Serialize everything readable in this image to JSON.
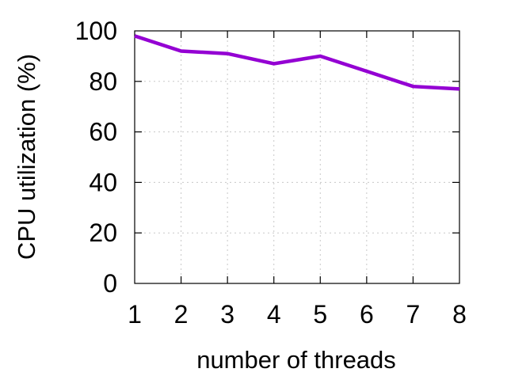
{
  "chart_data": {
    "type": "line",
    "title": "",
    "xlabel": "number of threads",
    "ylabel": "CPU utilization (%)",
    "xlim": [
      1,
      8
    ],
    "ylim": [
      0,
      100
    ],
    "xticks": [
      "1",
      "2",
      "3",
      "4",
      "5",
      "6",
      "7",
      "8"
    ],
    "yticks": [
      "0",
      "20",
      "40",
      "60",
      "80",
      "100"
    ],
    "grid": true,
    "legend": "none",
    "series": [
      {
        "color": "#9400d3",
        "x": [
          1,
          2,
          3,
          4,
          5,
          6,
          7,
          8
        ],
        "y": [
          98,
          92,
          91,
          87,
          90,
          84,
          78,
          77
        ]
      }
    ]
  }
}
